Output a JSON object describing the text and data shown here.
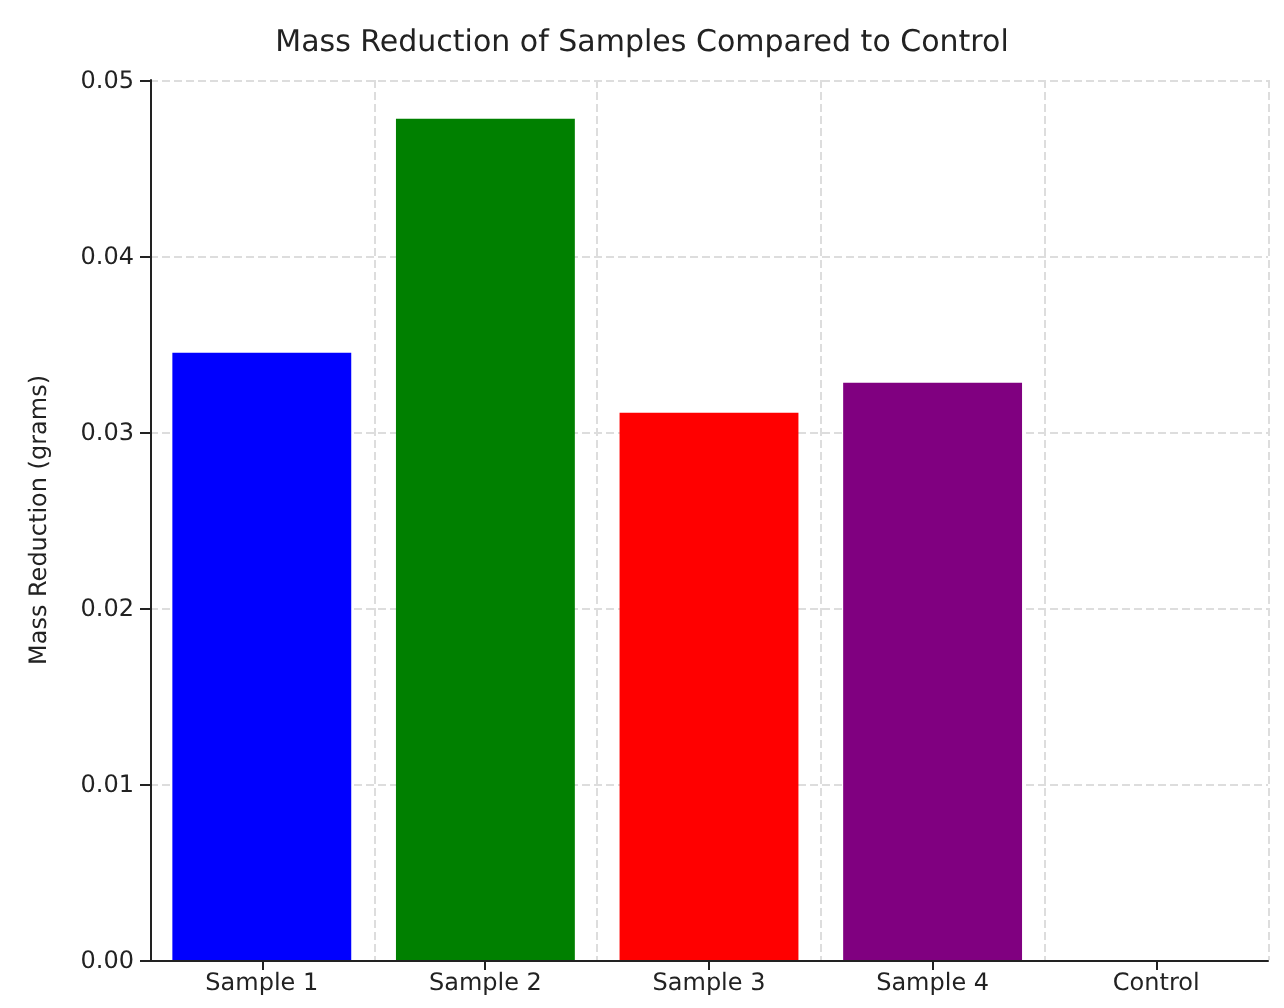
{
  "chart_data": {
    "type": "bar",
    "title": "Mass Reduction of Samples Compared to Control",
    "ylabel": "Mass Reduction (grams)",
    "categories": [
      "Sample 1",
      "Sample 2",
      "Sample 3",
      "Sample 4",
      "Control"
    ],
    "values": [
      0.0345,
      0.0478,
      0.0311,
      0.0328,
      0
    ],
    "colors": [
      "#0000ff",
      "#008000",
      "#ff0000",
      "#800080",
      "#ffa500"
    ],
    "ylim": [
      0,
      0.05
    ],
    "yticks": [
      {
        "value": 0,
        "label": "0.00"
      },
      {
        "value": 0.01,
        "label": "0.01"
      },
      {
        "value": 0.02,
        "label": "0.02"
      },
      {
        "value": 0.03,
        "label": "0.03"
      },
      {
        "value": 0.04,
        "label": "0.04"
      },
      {
        "value": 0.05,
        "label": "0.05"
      }
    ],
    "grid": true
  }
}
